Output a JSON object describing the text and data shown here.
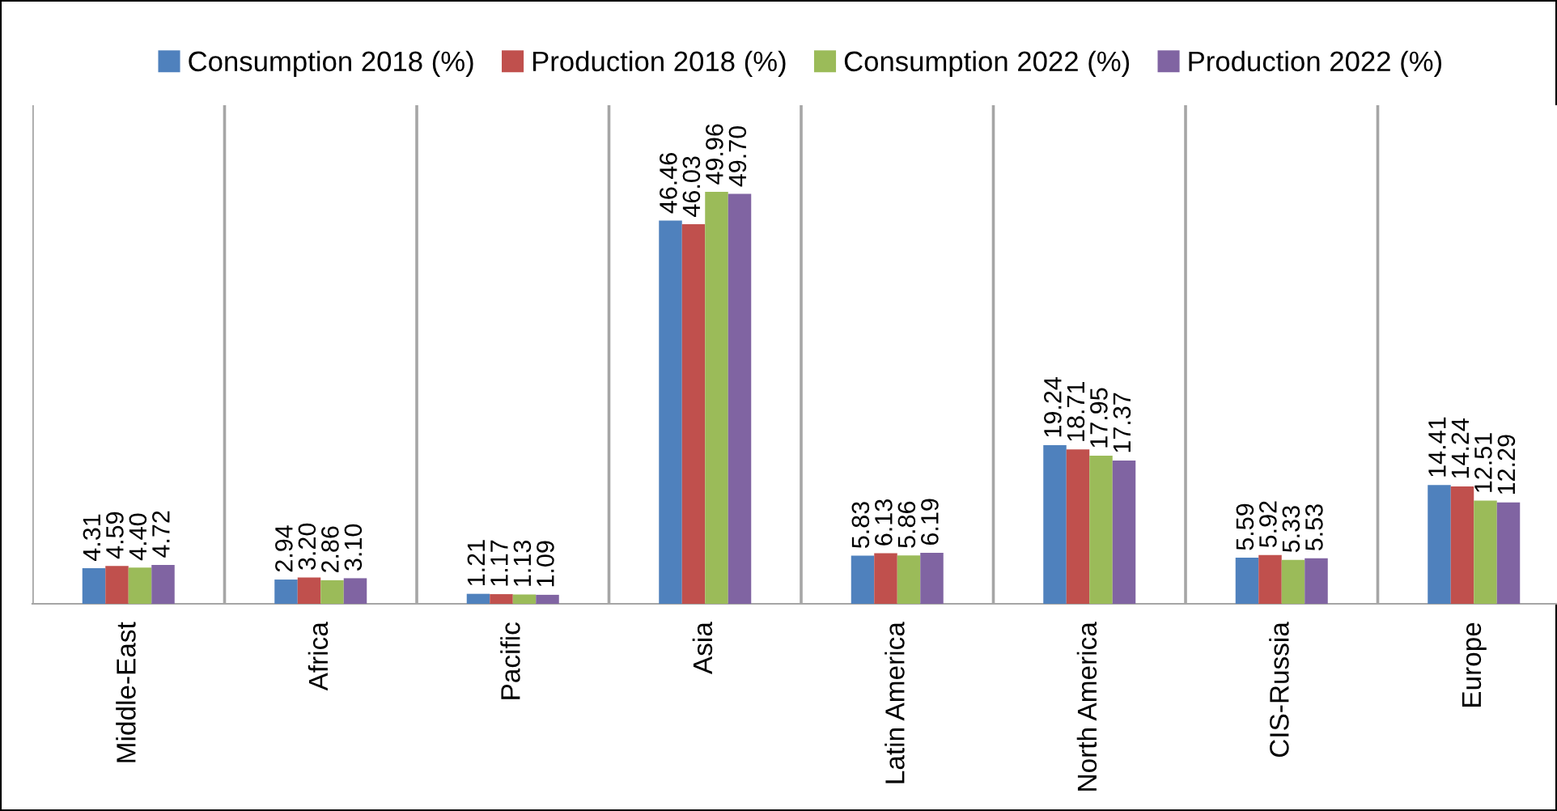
{
  "chart_data": {
    "type": "bar",
    "categories": [
      "Middle-East",
      "Africa",
      "Pacific",
      "Asia",
      "Latin America",
      "North America",
      "CIS-Russia",
      "Europe"
    ],
    "series": [
      {
        "name": "Consumption 2018 (%)",
        "color": "#4f81bd",
        "values": [
          4.31,
          2.94,
          1.21,
          46.46,
          5.83,
          19.24,
          5.59,
          14.41
        ],
        "value_labels": [
          "4.31",
          "2.94",
          "1.21",
          "46.46",
          "5.83",
          "19.24",
          "5.59",
          "14.41"
        ]
      },
      {
        "name": "Production 2018 (%)",
        "color": "#c0504d",
        "values": [
          4.59,
          3.2,
          1.17,
          46.03,
          6.13,
          18.71,
          5.92,
          14.24
        ],
        "value_labels": [
          "4.59",
          "3.20",
          "1.17",
          "46.03",
          "6.13",
          "18.71",
          "5.92",
          "14.24"
        ]
      },
      {
        "name": "Consumption 2022 (%)",
        "color": "#9bbb59",
        "values": [
          4.4,
          2.86,
          1.13,
          49.96,
          5.86,
          17.95,
          5.33,
          12.51
        ],
        "value_labels": [
          "4.40",
          "2.86",
          "1.13",
          "49.96",
          "5.86",
          "17.95",
          "5.33",
          "12.51"
        ]
      },
      {
        "name": "Production 2022 (%)",
        "color": "#8064a2",
        "values": [
          4.72,
          3.1,
          1.09,
          49.7,
          6.19,
          17.37,
          5.53,
          12.29
        ],
        "value_labels": [
          "4.72",
          "3.10",
          "1.09",
          "49.70",
          "6.19",
          "17.37",
          "5.53",
          "12.29"
        ]
      }
    ],
    "grid": "x",
    "legend": "top",
    "tick_labels": "x"
  }
}
